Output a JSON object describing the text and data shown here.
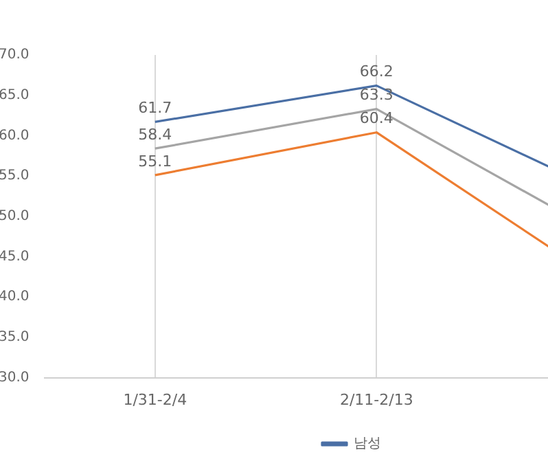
{
  "chart_data": {
    "type": "line",
    "categories": [
      "1/31-2/4",
      "2/11-2/13",
      null
    ],
    "series": [
      {
        "name": "남성",
        "color": "#4a6fa5",
        "values": [
          61.7,
          66.2,
          53.3
        ],
        "value_labels": [
          "61.7",
          "66.2",
          null
        ]
      },
      {
        "color": "#a5a5a5",
        "values": [
          58.4,
          63.3,
          48.0
        ],
        "value_labels": [
          "58.4",
          "63.3",
          null
        ]
      },
      {
        "color": "#ed7d31",
        "values": [
          55.1,
          60.4,
          42.2
        ],
        "value_labels": [
          "55.1",
          "60.4",
          null
        ]
      }
    ],
    "ylim": [
      30,
      70
    ],
    "yticks": [
      {
        "value": 30,
        "label": "30.0"
      },
      {
        "value": 35,
        "label": "35.0"
      },
      {
        "value": 40,
        "label": "40.0"
      },
      {
        "value": 45,
        "label": "45.0"
      },
      {
        "value": 50,
        "label": "50.0"
      },
      {
        "value": 55,
        "label": "55.0"
      },
      {
        "value": 60,
        "label": "60.0"
      },
      {
        "value": 65,
        "label": "65.0"
      },
      {
        "value": 70,
        "label": "70.0"
      }
    ],
    "grid": "x",
    "legend": "bottom",
    "marker": "none",
    "line_style": "solid"
  }
}
